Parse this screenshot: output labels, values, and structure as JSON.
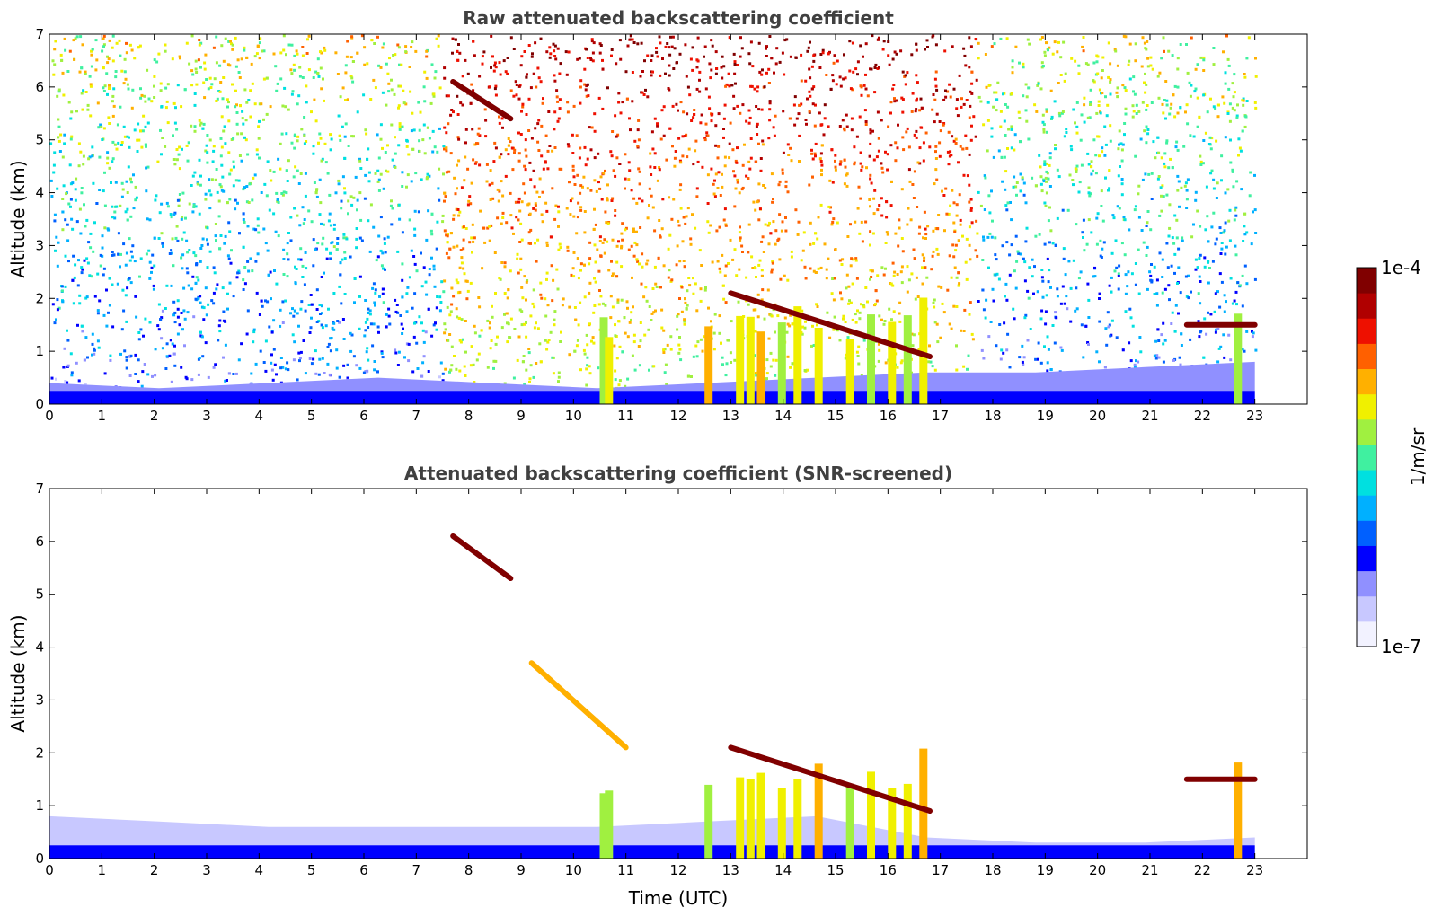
{
  "chart_data": [
    {
      "type": "heatmap",
      "title": "Raw attenuated backscattering coefficient",
      "xlabel": "",
      "ylabel": "Altitude (km)",
      "xlim": [
        0,
        24
      ],
      "ylim": [
        0,
        7
      ],
      "x_ticks": [
        "0",
        "1",
        "2",
        "3",
        "4",
        "5",
        "6",
        "7",
        "8",
        "9",
        "10",
        "11",
        "12",
        "13",
        "14",
        "15",
        "16",
        "17",
        "18",
        "19",
        "20",
        "21",
        "22",
        "23"
      ],
      "y_ticks": [
        "0",
        "1",
        "2",
        "3",
        "4",
        "5",
        "6",
        "7"
      ],
      "data_extent": [
        0,
        23
      ],
      "colorbar": {
        "min": 1e-07,
        "max": 0.0001,
        "scale": "log",
        "label": "1/m/sr"
      },
      "features": [
        {
          "kind": "boundary_layer",
          "x": [
            0,
            23
          ],
          "top_km": [
            0.4,
            0.3,
            0.4,
            0.5,
            0.4,
            0.3,
            0.4,
            0.5,
            0.6,
            0.6,
            0.7,
            0.8
          ],
          "level": 0.12
        },
        {
          "kind": "clear_sky_noise",
          "x": [
            0,
            23
          ],
          "level": "increasing_with_altitude"
        },
        {
          "kind": "noisy_daytime_band",
          "x": [
            7.5,
            17.7
          ],
          "level": 0.85
        },
        {
          "kind": "cloud_layer",
          "x": [
            7.7,
            8.8
          ],
          "y": [
            6.1,
            5.4
          ],
          "level": 1.0
        },
        {
          "kind": "cloud_layer",
          "x": [
            13.0,
            16.8
          ],
          "y": [
            2.1,
            0.9
          ],
          "level": 1.0
        },
        {
          "kind": "cloud_layer",
          "x": [
            21.7,
            23.0
          ],
          "y": [
            1.5,
            1.5
          ],
          "level": 1.0
        },
        {
          "kind": "precipitation_columns",
          "x": [
            10.5,
            10.6,
            12.5,
            13.1,
            13.3,
            13.5,
            13.9,
            14.2,
            14.6,
            15.2,
            15.6,
            16.0,
            16.3,
            16.6,
            22.6
          ],
          "level": 0.7
        }
      ]
    },
    {
      "type": "heatmap",
      "title": "Attenuated backscattering coefficient (SNR-screened)",
      "xlabel": "Time (UTC)",
      "ylabel": "Altitude (km)",
      "xlim": [
        0,
        24
      ],
      "ylim": [
        0,
        7
      ],
      "x_ticks": [
        "0",
        "1",
        "2",
        "3",
        "4",
        "5",
        "6",
        "7",
        "8",
        "9",
        "10",
        "11",
        "12",
        "13",
        "14",
        "15",
        "16",
        "17",
        "18",
        "19",
        "20",
        "21",
        "22",
        "23"
      ],
      "y_ticks": [
        "0",
        "1",
        "2",
        "3",
        "4",
        "5",
        "6",
        "7"
      ],
      "data_extent": [
        0,
        23
      ],
      "colorbar": {
        "min": 1e-07,
        "max": 0.0001,
        "scale": "log",
        "label": "1/m/sr"
      },
      "features": [
        {
          "kind": "boundary_layer",
          "x": [
            0,
            23
          ],
          "top_km": [
            0.8,
            0.7,
            0.6,
            0.6,
            0.6,
            0.6,
            0.7,
            0.8,
            0.4,
            0.3,
            0.3,
            0.4
          ],
          "level": 0.1
        },
        {
          "kind": "cloud_layer",
          "x": [
            7.7,
            8.8
          ],
          "y": [
            6.1,
            5.3
          ],
          "level": 1.0
        },
        {
          "kind": "cloud_layer",
          "x": [
            9.2,
            11.0
          ],
          "y": [
            3.7,
            2.1
          ],
          "level": 0.72
        },
        {
          "kind": "cloud_layer",
          "x": [
            13.0,
            16.8
          ],
          "y": [
            2.1,
            0.9
          ],
          "level": 1.0
        },
        {
          "kind": "cloud_layer",
          "x": [
            21.7,
            23.0
          ],
          "y": [
            1.5,
            1.5
          ],
          "level": 1.0
        },
        {
          "kind": "precipitation_columns",
          "x": [
            10.5,
            10.6,
            12.5,
            13.1,
            13.3,
            13.5,
            13.9,
            14.2,
            14.6,
            15.2,
            15.6,
            16.0,
            16.3,
            16.6,
            22.6
          ],
          "level": 0.7
        }
      ]
    }
  ],
  "colorbar": {
    "max_label": "1e-4",
    "min_label": "1e-7",
    "unit_label": "1/m/sr",
    "colors": [
      "#f2f2ff",
      "#c8c8ff",
      "#9090ff",
      "#0000ff",
      "#0060ff",
      "#00b0ff",
      "#00e0e0",
      "#40f0a0",
      "#a0f040",
      "#f0f000",
      "#ffb000",
      "#ff6000",
      "#ee1000",
      "#b00000",
      "#800000"
    ]
  }
}
